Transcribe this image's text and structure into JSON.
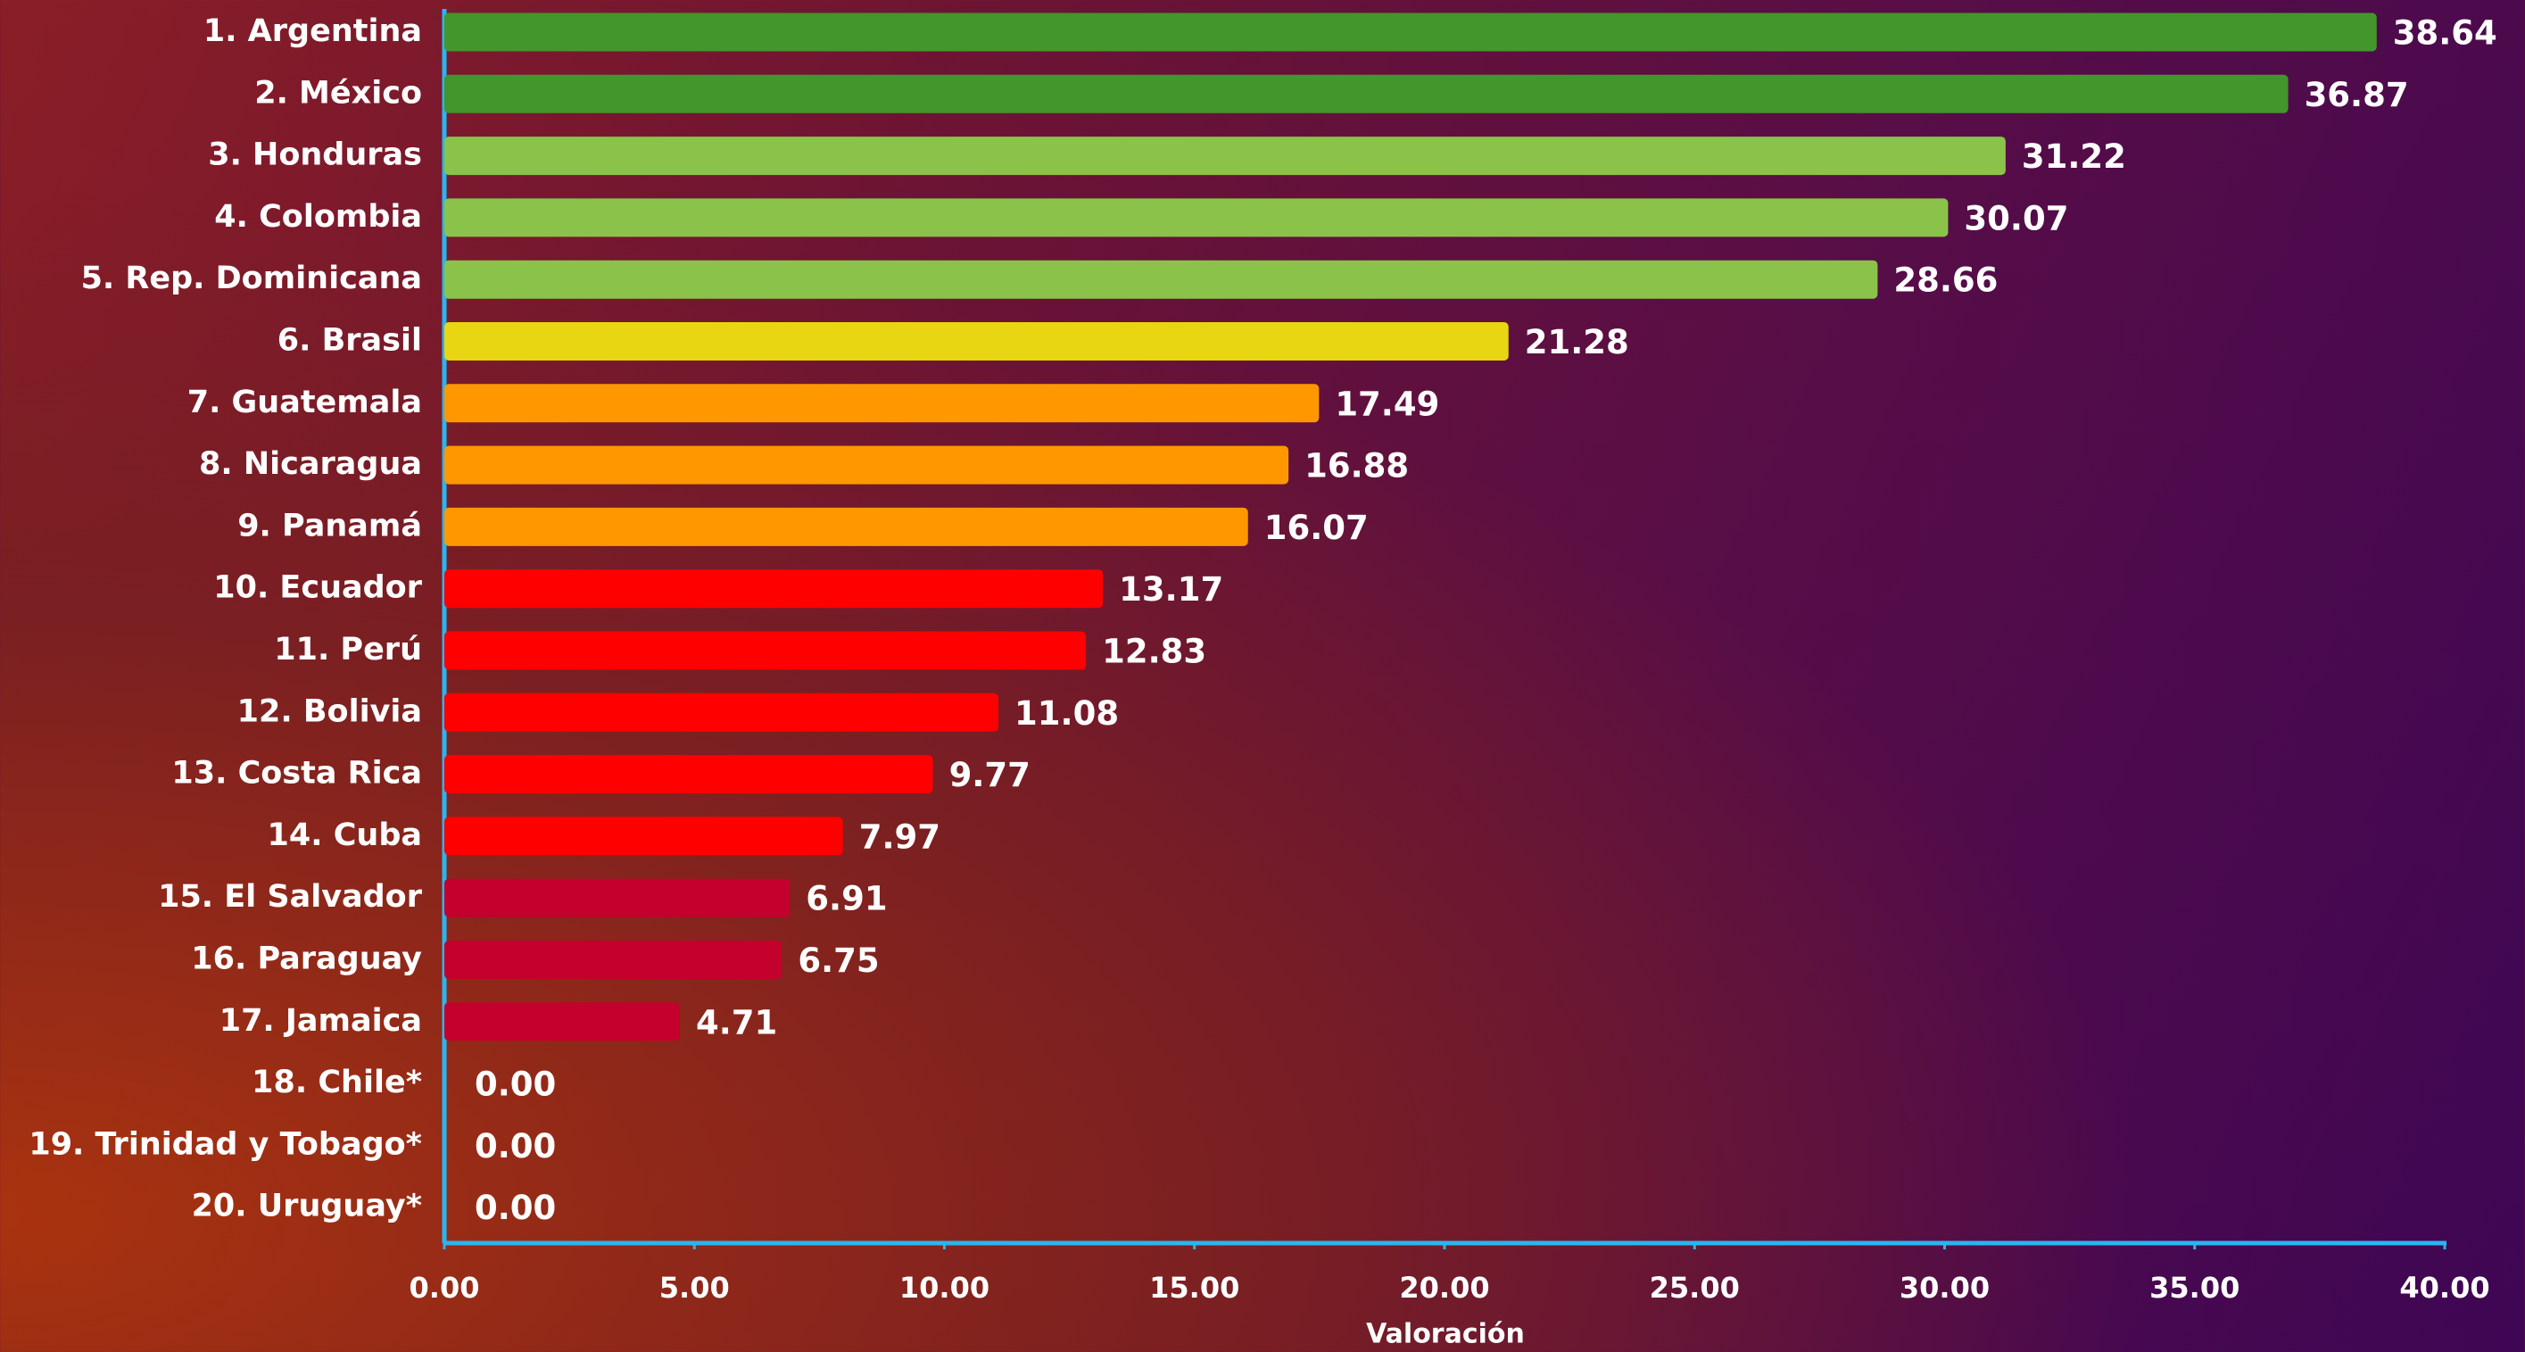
{
  "chart_data": {
    "type": "bar",
    "orientation": "horizontal",
    "categories": [
      "1. Argentina",
      "2. México",
      "3. Honduras",
      "4. Colombia",
      "5. Rep. Dominicana",
      "6. Brasil",
      "7. Guatemala",
      "8. Nicaragua",
      "9. Panamá",
      "10. Ecuador",
      "11. Perú",
      "12. Bolivia",
      "13. Costa Rica",
      "14. Cuba",
      "15. El Salvador",
      "16. Paraguay",
      "17. Jamaica",
      "18. Chile*",
      "19. Trinidad y Tobago*",
      "20. Uruguay*"
    ],
    "values": [
      38.64,
      36.87,
      31.22,
      30.07,
      28.66,
      21.28,
      17.49,
      16.88,
      16.07,
      13.17,
      12.83,
      11.08,
      9.77,
      7.97,
      6.91,
      6.75,
      4.71,
      0,
      0,
      0
    ],
    "value_labels": [
      "38.64",
      "36.87",
      "31.22",
      "30.07",
      "28.66",
      "21.28",
      "17.49",
      "16.88",
      "16.07",
      "13.17",
      "12.83",
      "11.08",
      "9.77",
      "7.97",
      "6.91",
      "6.75",
      "4.71",
      "0.00",
      "0.00",
      "0.00"
    ],
    "colors": [
      "#43962b",
      "#43962b",
      "#8bc34a",
      "#8bc34a",
      "#8bc34a",
      "#e8d613",
      "#ff9800",
      "#ff9800",
      "#ff9800",
      "#ff0000",
      "#ff0000",
      "#ff0000",
      "#ff0000",
      "#ff0000",
      "#c4002c",
      "#c4002c",
      "#c4002c",
      "#c4002c",
      "#c4002c",
      "#c4002c"
    ],
    "xlim": [
      0,
      40
    ],
    "xticks": [
      {
        "value": 0,
        "label": "0.00"
      },
      {
        "value": 5,
        "label": "5.00"
      },
      {
        "value": 10,
        "label": "10.00"
      },
      {
        "value": 15,
        "label": "15.00"
      },
      {
        "value": 20,
        "label": "20.00"
      },
      {
        "value": 25,
        "label": "25.00"
      },
      {
        "value": 30,
        "label": "30.00"
      },
      {
        "value": 35,
        "label": "35.00"
      },
      {
        "value": 40,
        "label": "40.00"
      }
    ],
    "xlabel": "Valoración"
  }
}
